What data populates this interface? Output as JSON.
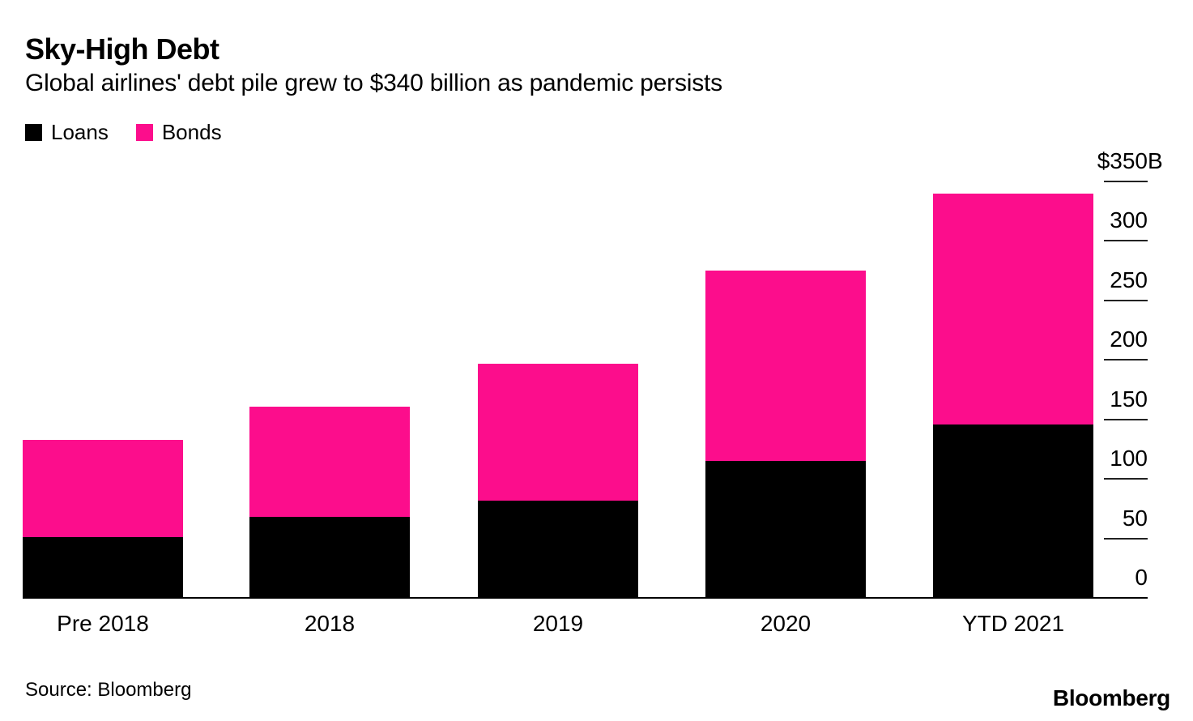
{
  "header": {
    "title": "Sky-High Debt",
    "subtitle": "Global airlines' debt pile grew to $340 billion as pandemic persists"
  },
  "legend": [
    {
      "label": "Loans",
      "color": "#000000"
    },
    {
      "label": "Bonds",
      "color": "#FC0D8C"
    }
  ],
  "chart_data": {
    "type": "bar",
    "stacked": true,
    "title": "Sky-High Debt",
    "subtitle": "Global airlines' debt pile grew to $340 billion as pandemic persists",
    "unit": "$B",
    "categories": [
      "Pre 2018",
      "2018",
      "2019",
      "2020",
      "YTD 2021"
    ],
    "series": [
      {
        "name": "Loans",
        "color": "#000000",
        "values": [
          51,
          68,
          82,
          115,
          146
        ]
      },
      {
        "name": "Bonds",
        "color": "#FC0D8C",
        "values": [
          82,
          93,
          115,
          160,
          194
        ]
      }
    ],
    "totals": [
      133,
      161,
      197,
      275,
      340
    ],
    "ylim": [
      0,
      350
    ],
    "yticks": [
      350,
      300,
      250,
      200,
      150,
      100,
      50,
      0
    ],
    "ytick_labels": [
      "$350B",
      "300",
      "250",
      "200",
      "150",
      "100",
      "50",
      "0"
    ],
    "axis_side": "right",
    "grid": false,
    "legend_position": "top-left"
  },
  "footer": {
    "source": "Source: Bloomberg",
    "brand": "Bloomberg"
  },
  "colors": {
    "background": "#FFFFFF",
    "text": "#000000",
    "loans": "#000000",
    "bonds": "#FC0D8C",
    "axis": "#000000"
  }
}
